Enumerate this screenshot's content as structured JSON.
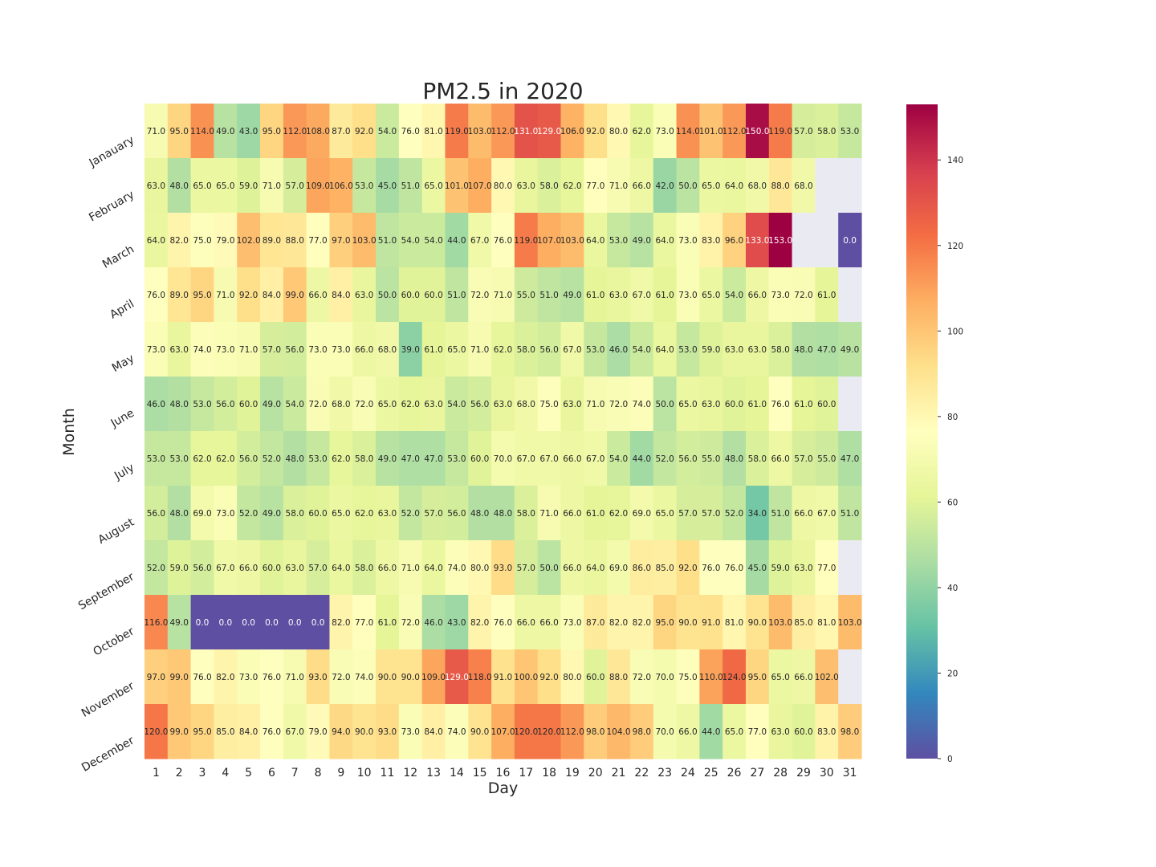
{
  "chart_data": {
    "type": "heatmap",
    "title": "PM2.5 in 2020",
    "xlabel": "Day",
    "ylabel": "Month",
    "x": [
      "1",
      "2",
      "3",
      "4",
      "5",
      "6",
      "7",
      "8",
      "9",
      "10",
      "11",
      "12",
      "13",
      "14",
      "15",
      "16",
      "17",
      "18",
      "19",
      "20",
      "21",
      "22",
      "23",
      "24",
      "25",
      "26",
      "27",
      "28",
      "29",
      "30",
      "31"
    ],
    "y": [
      "Janauary",
      "February",
      "March",
      "April",
      "May",
      "June",
      "July",
      "August",
      "September",
      "October",
      "November",
      "December"
    ],
    "values": [
      [
        71,
        95,
        114,
        49,
        43,
        95,
        112,
        108,
        87,
        92,
        54,
        76,
        81,
        119,
        103,
        112,
        131,
        129,
        106,
        92,
        80,
        62,
        73,
        114,
        101,
        112,
        150,
        119,
        57,
        58,
        53
      ],
      [
        63,
        48,
        65,
        65,
        59,
        71,
        57,
        109,
        106,
        53,
        45,
        51,
        65,
        101,
        107,
        80,
        63,
        58,
        62,
        77,
        71,
        66,
        42,
        50,
        65,
        64,
        68,
        88,
        68,
        null,
        null
      ],
      [
        64,
        82,
        75,
        79,
        102,
        89,
        88,
        77,
        97,
        103,
        51,
        54,
        54,
        44,
        67,
        76,
        119,
        107,
        103,
        64,
        53,
        49,
        64,
        73,
        83,
        96,
        133,
        153,
        null,
        null,
        0
      ],
      [
        76,
        89,
        95,
        71,
        92,
        84,
        99,
        66,
        84,
        63,
        50,
        60,
        60,
        51,
        72,
        71,
        55,
        51,
        49,
        61,
        63,
        67,
        61,
        73,
        65,
        54,
        66,
        73,
        72,
        61,
        null
      ],
      [
        73,
        63,
        74,
        73,
        71,
        57,
        56,
        73,
        73,
        66,
        68,
        39,
        61,
        65,
        71,
        62,
        58,
        56,
        67,
        53,
        46,
        54,
        64,
        53,
        59,
        63,
        63,
        58,
        48,
        47,
        49
      ],
      [
        46,
        48,
        53,
        56,
        60,
        49,
        54,
        72,
        68,
        72,
        65,
        62,
        63,
        54,
        56,
        63,
        68,
        75,
        63,
        71,
        72,
        74,
        50,
        65,
        63,
        60,
        61,
        76,
        61,
        60,
        null
      ],
      [
        53,
        53,
        62,
        62,
        56,
        52,
        48,
        53,
        62,
        58,
        49,
        47,
        47,
        53,
        60,
        70,
        67,
        67,
        66,
        67,
        54,
        44,
        52,
        56,
        55,
        48,
        58,
        66,
        57,
        55,
        47
      ],
      [
        56,
        48,
        69,
        73,
        52,
        49,
        58,
        60,
        65,
        62,
        63,
        52,
        57,
        56,
        48,
        48,
        58,
        71,
        66,
        61,
        62,
        69,
        65,
        57,
        57,
        52,
        34,
        51,
        66,
        67,
        51
      ],
      [
        52,
        59,
        56,
        67,
        66,
        60,
        63,
        57,
        64,
        58,
        66,
        71,
        64,
        74,
        80,
        93,
        57,
        50,
        66,
        64,
        69,
        86,
        85,
        92,
        76,
        76,
        45,
        59,
        63,
        77,
        null
      ],
      [
        116,
        49,
        0,
        0,
        0,
        0,
        0,
        0,
        82,
        77,
        61,
        72,
        46,
        43,
        82,
        76,
        66,
        66,
        73,
        87,
        82,
        82,
        95,
        90,
        91,
        81,
        90,
        103,
        85,
        81,
        103
      ],
      [
        97,
        99,
        76,
        82,
        73,
        76,
        71,
        93,
        72,
        74,
        90,
        90,
        109,
        129,
        118,
        91,
        100,
        92,
        80,
        60,
        88,
        72,
        70,
        75,
        110,
        124,
        95,
        65,
        66,
        102,
        null
      ],
      [
        120,
        99,
        95,
        85,
        84,
        76,
        67,
        79,
        94,
        90,
        93,
        73,
        84,
        74,
        90,
        107,
        120,
        120,
        112,
        98,
        104,
        98,
        70,
        66,
        44,
        65,
        77,
        63,
        60,
        83,
        98
      ]
    ],
    "value_format": "one-decimal",
    "colormap": "Spectral_r",
    "vmin": 0,
    "vmax": 153,
    "colorbar_ticks": [
      "0",
      "20",
      "40",
      "60",
      "80",
      "100",
      "120",
      "140"
    ],
    "missing_color": "#eaeaf2",
    "grid": false,
    "legend": "colorbar-right"
  }
}
